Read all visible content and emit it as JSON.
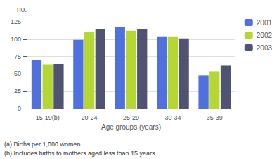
{
  "chart_data": {
    "type": "bar",
    "categories": [
      "15-19(b)",
      "20-24",
      "25-29",
      "30-34",
      "35-39"
    ],
    "series": [
      {
        "name": "2001",
        "values": [
          70,
          99,
          117,
          103,
          48
        ]
      },
      {
        "name": "2002",
        "values": [
          63,
          110,
          112,
          103,
          53
        ]
      },
      {
        "name": "2003",
        "values": [
          64,
          114,
          115,
          101,
          62
        ]
      }
    ],
    "xlabel": "Age groups (years)",
    "ylabel": "no.",
    "ylim": [
      0,
      130
    ],
    "yticks": [
      0,
      25,
      50,
      75,
      100,
      125
    ],
    "grid": true,
    "legend": "right",
    "annotations": [
      "(a) Births per 1,000 women.",
      "(b) Includes births to mothers aged less than 15 years."
    ]
  }
}
